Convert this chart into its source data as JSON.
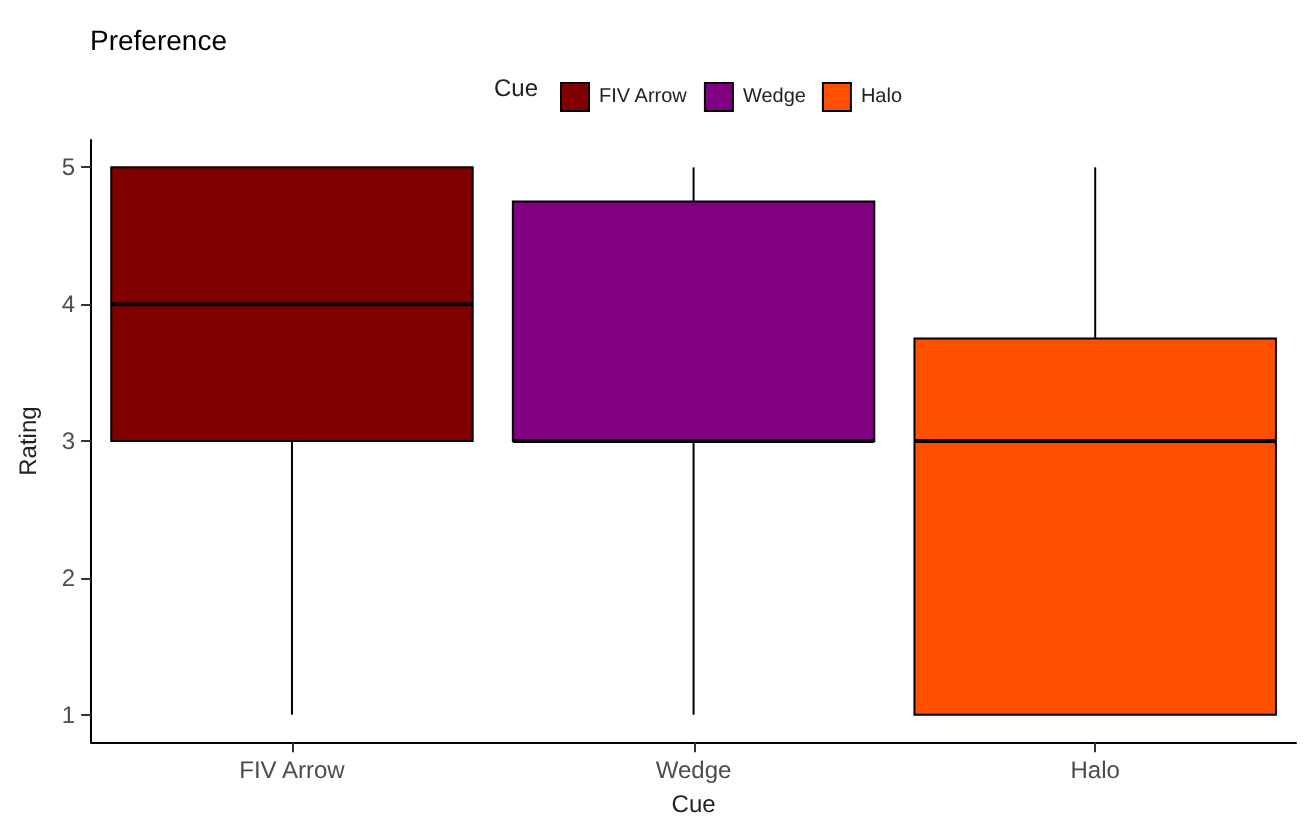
{
  "chart_data": {
    "type": "box",
    "title": "Preference",
    "xlabel": "Cue",
    "ylabel": "Rating",
    "legend_title": "Cue",
    "categories": [
      "FIV Arrow",
      "Wedge",
      "Halo"
    ],
    "series": [
      {
        "name": "FIV Arrow",
        "color": "#800000",
        "boxes": [
          {
            "low": 1,
            "q1": 3,
            "median": 4,
            "q3": 5,
            "high": 5
          },
          null,
          null
        ]
      },
      {
        "name": "Wedge",
        "color": "#800080",
        "boxes": [
          null,
          {
            "low": 1,
            "q1": 3,
            "median": 3,
            "q3": 4.75,
            "high": 5
          },
          null
        ]
      },
      {
        "name": "Halo",
        "color": "#ff4f00",
        "boxes": [
          null,
          null,
          {
            "low": 1,
            "q1": 1,
            "median": 3,
            "q3": 3.75,
            "high": 5
          }
        ]
      }
    ],
    "ylim": [
      0.8,
      5.2
    ],
    "yticks": [
      1,
      2,
      3,
      4,
      5
    ],
    "legend": "top",
    "grid": false
  }
}
